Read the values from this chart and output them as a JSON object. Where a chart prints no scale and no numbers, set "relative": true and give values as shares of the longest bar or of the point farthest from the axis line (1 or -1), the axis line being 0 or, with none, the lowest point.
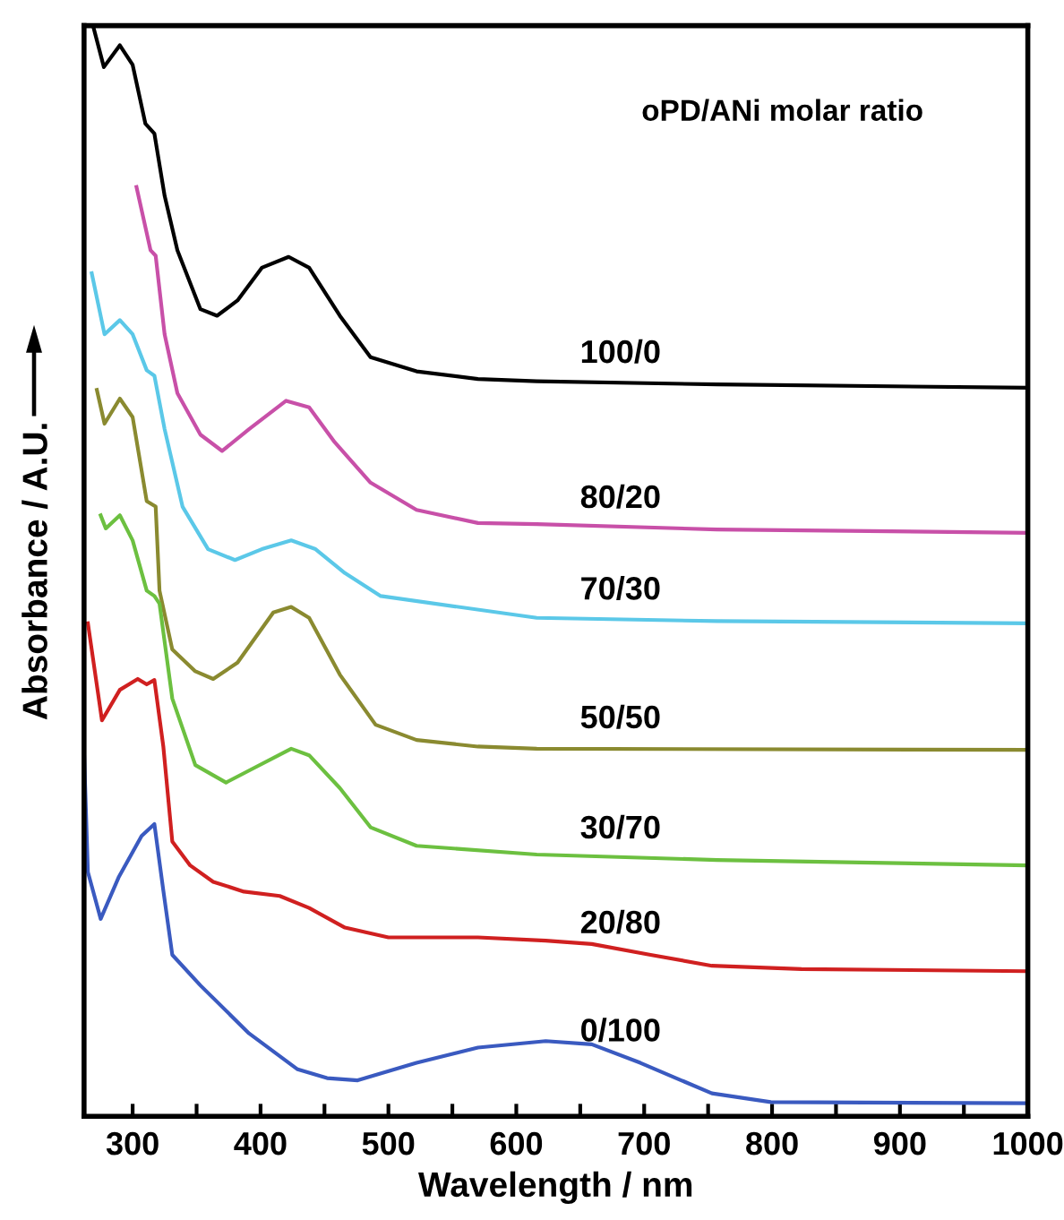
{
  "chart_data": {
    "type": "line",
    "relative": true,
    "xlabel": "Wavelength / nm",
    "ylabel": "Absorbance / A.U.",
    "legend_title": "oPD/ANi molar ratio",
    "xlim": [
      262,
      1000
    ],
    "xticks": [
      300,
      {
        "value": 350,
        "label": null
      },
      400,
      {
        "value": 450,
        "label": null
      },
      500,
      {
        "value": 550,
        "label": null
      },
      600,
      {
        "value": 650,
        "label": null
      },
      700,
      {
        "value": 750,
        "label": null
      },
      800,
      {
        "value": 850,
        "label": null
      },
      900,
      {
        "value": 950,
        "label": null
      },
      1000
    ],
    "grid": false,
    "legend": false,
    "marker": "none",
    "line_style": "solid",
    "series": [
      {
        "name": "100/0",
        "color": "#000000",
        "x": [
          269,
          277.5,
          290,
          300,
          310,
          317,
          325,
          335,
          353,
          366,
          382,
          401,
          422,
          438,
          462,
          486,
          522,
          570,
          616,
          757,
          1000
        ],
        "values": [
          1.0,
          0.962,
          0.982,
          0.964,
          0.91,
          0.901,
          0.844,
          0.794,
          0.74,
          0.734,
          0.748,
          0.778,
          0.788,
          0.778,
          0.734,
          0.696,
          0.683,
          0.676,
          0.674,
          0.671,
          0.668
        ]
      },
      {
        "name": "80/20",
        "color": "#c850a8",
        "x": [
          303,
          314,
          318,
          325,
          335,
          353,
          370,
          391,
          420,
          438,
          458,
          486,
          522,
          570,
          616,
          757,
          1000
        ],
        "values": [
          0.852,
          0.794,
          0.789,
          0.717,
          0.663,
          0.625,
          0.61,
          0.63,
          0.656,
          0.65,
          0.618,
          0.581,
          0.556,
          0.544,
          0.543,
          0.538,
          0.535
        ]
      },
      {
        "name": "70/30",
        "color": "#5bc8e8",
        "x": [
          268,
          278,
          290,
          300,
          311,
          317,
          325,
          339,
          359,
          380,
          401,
          424,
          443,
          466,
          494,
          616,
          757,
          1000
        ],
        "values": [
          0.773,
          0.717,
          0.73,
          0.717,
          0.684,
          0.679,
          0.63,
          0.559,
          0.52,
          0.51,
          0.52,
          0.528,
          0.52,
          0.498,
          0.477,
          0.457,
          0.454,
          0.452
        ]
      },
      {
        "name": "50/50",
        "color": "#8a8a30",
        "x": [
          272,
          278,
          290,
          300,
          311,
          318,
          321,
          331,
          349,
          363,
          382,
          410,
          424,
          438,
          462,
          490,
          522,
          570,
          616,
          1000
        ],
        "values": [
          0.666,
          0.635,
          0.658,
          0.641,
          0.564,
          0.559,
          0.482,
          0.428,
          0.408,
          0.401,
          0.416,
          0.462,
          0.467,
          0.457,
          0.405,
          0.359,
          0.345,
          0.339,
          0.337,
          0.336
        ]
      },
      {
        "name": "30/70",
        "color": "#6cc040",
        "x": [
          275,
          279,
          290,
          300,
          311,
          317,
          321,
          331,
          349,
          373,
          391,
          424,
          438,
          462,
          486,
          522,
          616,
          757,
          1000
        ],
        "values": [
          0.551,
          0.539,
          0.551,
          0.528,
          0.482,
          0.477,
          0.47,
          0.383,
          0.322,
          0.306,
          0.317,
          0.337,
          0.331,
          0.301,
          0.265,
          0.248,
          0.24,
          0.235,
          0.23
        ]
      },
      {
        "name": "20/80",
        "color": "#d02020",
        "x": [
          265,
          276,
          290,
          304,
          311,
          317,
          324,
          331,
          345,
          363,
          387,
          415,
          438,
          466,
          500,
          570,
          623,
          659,
          705,
          753,
          823,
          1000
        ],
        "values": [
          0.452,
          0.363,
          0.391,
          0.401,
          0.396,
          0.4,
          0.339,
          0.252,
          0.23,
          0.215,
          0.206,
          0.202,
          0.191,
          0.173,
          0.164,
          0.164,
          0.161,
          0.158,
          0.148,
          0.138,
          0.135,
          0.133
        ]
      },
      {
        "name": "0/100",
        "color": "#3a5ac0",
        "x": [
          262,
          265,
          275,
          289,
          307,
          317,
          324,
          331,
          353,
          391,
          429,
          452,
          476,
          522,
          570,
          623,
          659,
          697,
          729,
          753,
          799,
          1000
        ],
        "values": [
          0.334,
          0.224,
          0.181,
          0.219,
          0.257,
          0.268,
          0.207,
          0.148,
          0.12,
          0.076,
          0.043,
          0.035,
          0.033,
          0.049,
          0.063,
          0.069,
          0.066,
          0.049,
          0.033,
          0.021,
          0.013,
          0.012
        ]
      }
    ]
  }
}
